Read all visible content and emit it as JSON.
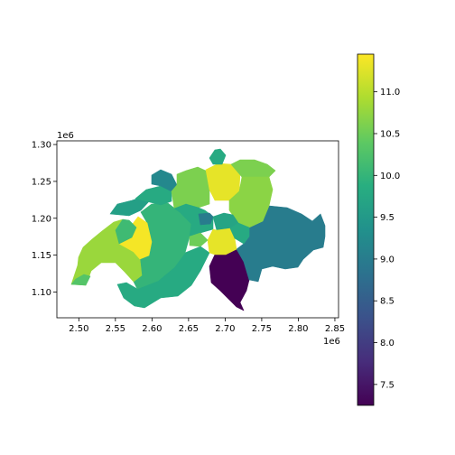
{
  "map": {
    "x_ticks": [
      "2.50",
      "2.55",
      "2.60",
      "2.65",
      "2.70",
      "2.75",
      "2.80",
      "2.85"
    ],
    "y_ticks": [
      "1.10",
      "1.15",
      "1.20",
      "1.25",
      "1.30"
    ],
    "x_exponent": "1e6",
    "y_exponent": "1e6",
    "xlim": [
      2.47,
      2.855
    ],
    "ylim": [
      1.065,
      1.305
    ],
    "grid": false,
    "colormap": "viridis"
  },
  "colorbar": {
    "ticks": [
      "7.5",
      "8.0",
      "8.5",
      "9.0",
      "9.5",
      "10.0",
      "10.5",
      "11.0"
    ],
    "range": [
      7.25,
      11.45
    ]
  },
  "regions": [
    {
      "name": "r-ticino",
      "value": 7.25
    },
    {
      "name": "r-graubunden",
      "value": 9.0
    },
    {
      "name": "r-valais",
      "value": 9.8
    },
    {
      "name": "r-bern",
      "value": 10.0
    },
    {
      "name": "r-vaud",
      "value": 10.8
    },
    {
      "name": "r-fribourg",
      "value": 11.4
    },
    {
      "name": "r-geneva",
      "value": 10.3
    },
    {
      "name": "r-neuchatel",
      "value": 10.1
    },
    {
      "name": "r-jura",
      "value": 9.6
    },
    {
      "name": "r-solothurn",
      "value": 9.8
    },
    {
      "name": "r-basel",
      "value": 9.2
    },
    {
      "name": "r-aargau",
      "value": 10.6
    },
    {
      "name": "r-zurich",
      "value": 11.3
    },
    {
      "name": "r-schaffhausen",
      "value": 9.8
    },
    {
      "name": "r-thurgau",
      "value": 10.6
    },
    {
      "name": "r-stgallen",
      "value": 10.7
    },
    {
      "name": "r-lucerne",
      "value": 9.8
    },
    {
      "name": "r-zug",
      "value": 9.0
    },
    {
      "name": "r-schwyz",
      "value": 9.7
    },
    {
      "name": "r-uri",
      "value": 11.3
    },
    {
      "name": "r-glarus",
      "value": 9.8
    },
    {
      "name": "r-obwalden",
      "value": 10.5
    }
  ]
}
